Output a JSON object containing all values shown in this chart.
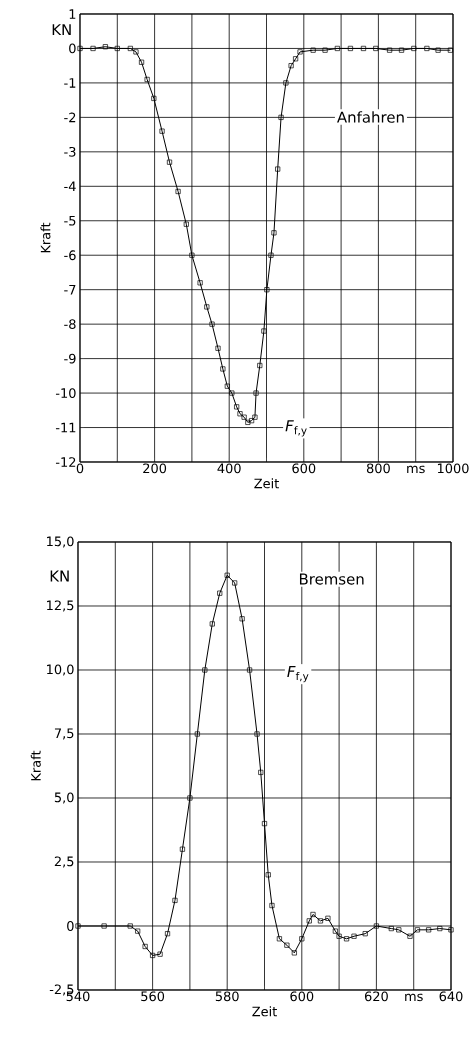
{
  "chart_data": [
    {
      "type": "line",
      "xlabel": "Zeit",
      "ylabel": "Kraft",
      "annotations": [
        "KN",
        "Anfahren",
        "*F*$_{f,y}$"
      ],
      "x": [
        0,
        35,
        68,
        100,
        135,
        150,
        165,
        180,
        198,
        220,
        240,
        263,
        285,
        300,
        322,
        340,
        354,
        370,
        383,
        395,
        407,
        420,
        429,
        440,
        450,
        460,
        469,
        472,
        482,
        493,
        501,
        512,
        520,
        530,
        539,
        552,
        566,
        578,
        590,
        625,
        657,
        690,
        725,
        760,
        793,
        830,
        862,
        895,
        930,
        960,
        993
      ],
      "series": [
        {
          "color": "#000000",
          "values": [
            0,
            0,
            0.05,
            0,
            0,
            -0.1,
            -0.4,
            -0.9,
            -1.45,
            -2.4,
            -3.3,
            -4.15,
            -5.1,
            -6.0,
            -6.8,
            -7.5,
            -8.0,
            -8.7,
            -9.3,
            -9.8,
            -10.0,
            -10.4,
            -10.6,
            -10.7,
            -10.85,
            -10.8,
            -10.7,
            -10.0,
            -9.2,
            -8.2,
            -7.0,
            -6.0,
            -5.35,
            -3.5,
            -2.0,
            -1.0,
            -0.5,
            -0.3,
            -0.1,
            -0.05,
            -0.05,
            0,
            0,
            0,
            0,
            -0.05,
            -0.05,
            0,
            0,
            -0.05,
            -0.05
          ]
        }
      ],
      "xlim": [
        0,
        1000
      ],
      "ylim": [
        -12,
        1
      ],
      "xticks": [
        0,
        {
          "value": 100,
          "label": null
        },
        200,
        {
          "value": 300,
          "label": null
        },
        400,
        {
          "value": 500,
          "label": null
        },
        600,
        {
          "value": 700,
          "label": null
        },
        800,
        {
          "value": 900,
          "label": "ms"
        },
        1000
      ],
      "yticks": [
        1,
        0,
        -1,
        -2,
        -3,
        -4,
        -5,
        -6,
        -7,
        -8,
        -9,
        -10,
        -11,
        -12
      ],
      "grid": true,
      "marker": "square",
      "line_style": "solid"
    },
    {
      "type": "line",
      "xlabel": "Zeit",
      "ylabel": "Kraft",
      "annotations": [
        "KN",
        "Bremsen",
        "*F*$_{f,y}$"
      ],
      "x": [
        540,
        547,
        554,
        556,
        558,
        560,
        562,
        564,
        566,
        568,
        570,
        572,
        574,
        576,
        578,
        580,
        582,
        584,
        586,
        588,
        589,
        590,
        591,
        592,
        594,
        596,
        598,
        600,
        602,
        603,
        605,
        607,
        609,
        610,
        612,
        614,
        617,
        620,
        624,
        626,
        629,
        631,
        634,
        637,
        640
      ],
      "series": [
        {
          "color": "#000000",
          "values": [
            0,
            0,
            0,
            -0.2,
            -0.8,
            -1.15,
            -1.1,
            -0.3,
            1.0,
            3.0,
            5.0,
            7.5,
            10.0,
            11.8,
            13.0,
            13.7,
            13.4,
            12.0,
            10.0,
            7.5,
            6.0,
            4.0,
            2.0,
            0.8,
            -0.5,
            -0.75,
            -1.05,
            -0.5,
            0.2,
            0.45,
            0.2,
            0.3,
            -0.2,
            -0.4,
            -0.5,
            -0.4,
            -0.3,
            0,
            -0.1,
            -0.15,
            -0.4,
            -0.15,
            -0.15,
            -0.1,
            -0.15
          ]
        }
      ],
      "xlim": [
        540,
        640
      ],
      "ylim": [
        -2.5,
        15
      ],
      "xticks": [
        540,
        {
          "value": 550,
          "label": null
        },
        560,
        {
          "value": 570,
          "label": null
        },
        580,
        {
          "value": 590,
          "label": null
        },
        600,
        {
          "value": 610,
          "label": null
        },
        620,
        {
          "value": 630,
          "label": "ms"
        },
        640
      ],
      "yticks": [
        {
          "value": 15,
          "label": "15,0"
        },
        {
          "value": 12.5,
          "label": "12,5"
        },
        {
          "value": 10,
          "label": "10,0"
        },
        {
          "value": 7.5,
          "label": "7,5"
        },
        {
          "value": 5,
          "label": "5,0"
        },
        {
          "value": 2.5,
          "label": "2,5"
        },
        0,
        {
          "value": -2.5,
          "label": "-2,5"
        }
      ],
      "grid": true,
      "marker": "square",
      "line_style": "solid"
    }
  ]
}
